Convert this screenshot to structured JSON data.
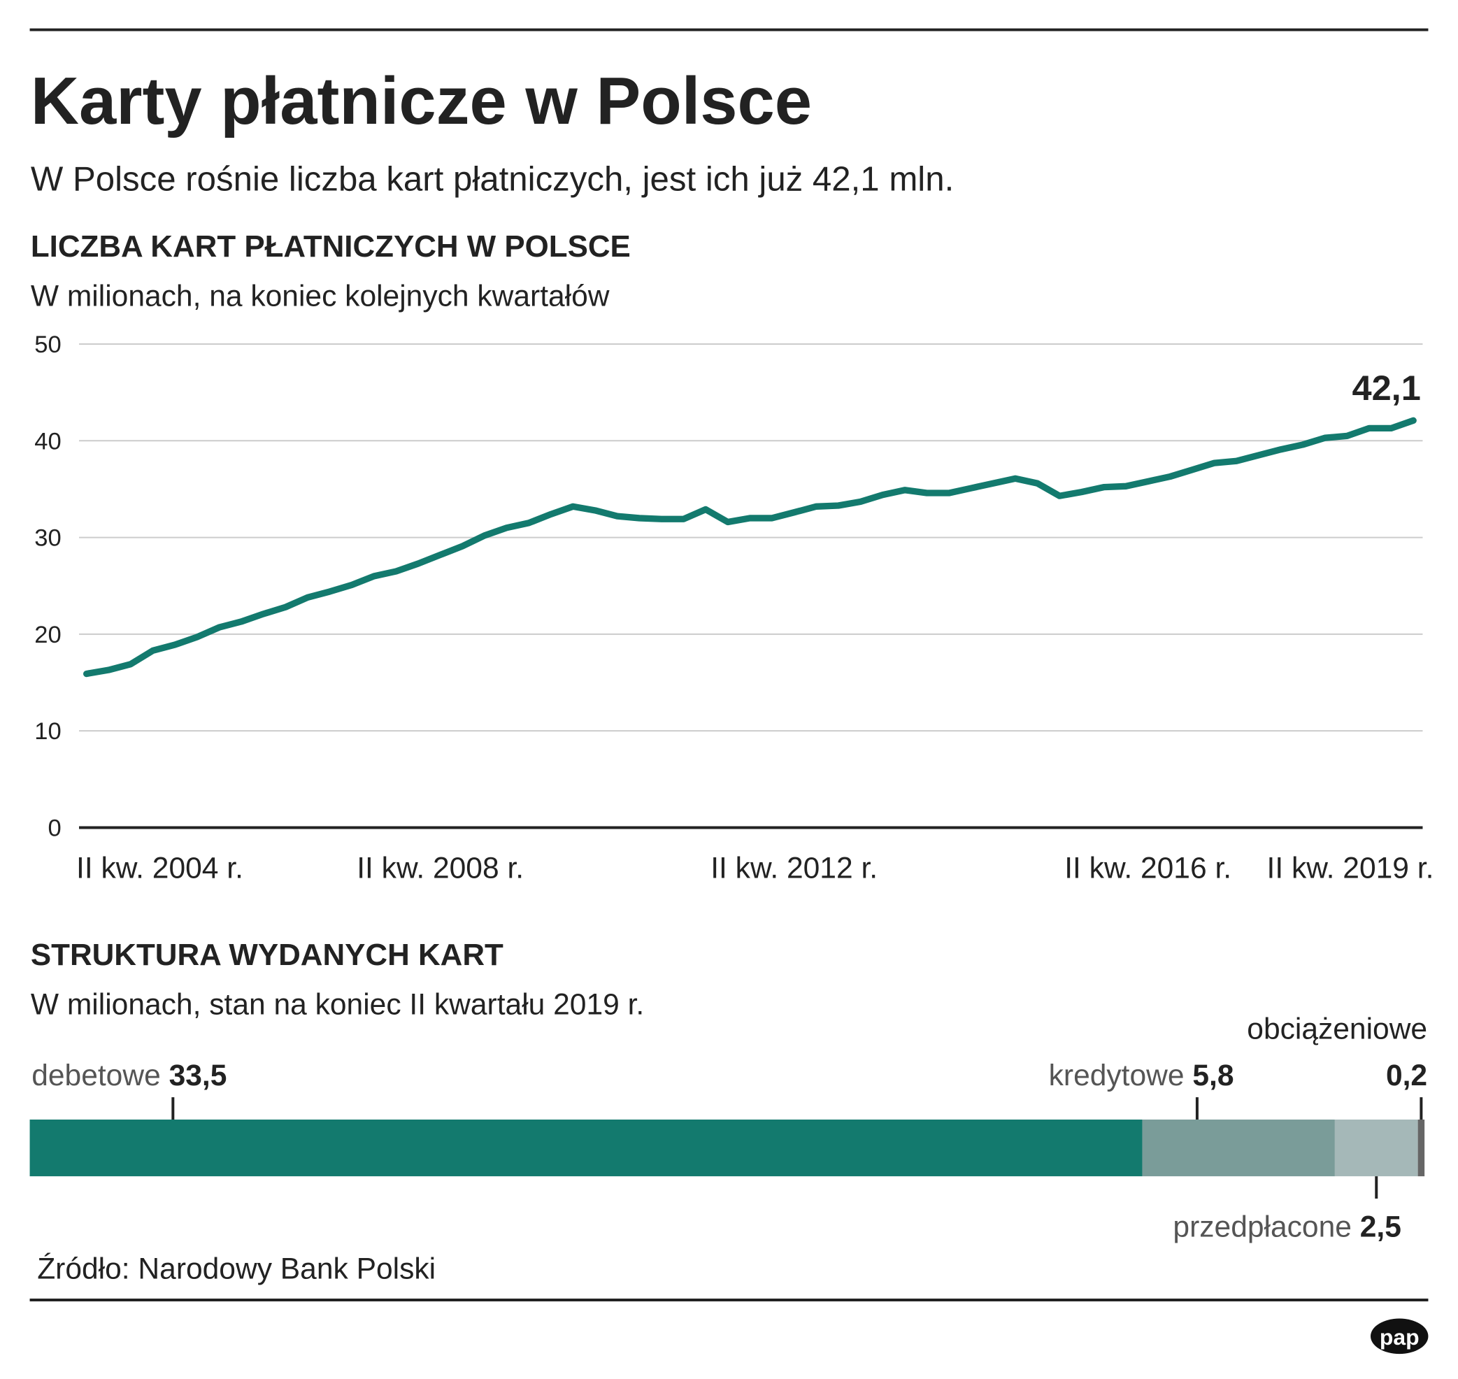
{
  "header": {
    "title": "Karty płatnicze w Polsce",
    "subtitle": "W Polsce rośnie liczba kart płatniczych, jest ich już 42,1 mln."
  },
  "chart_data": [
    {
      "type": "line",
      "title": "LICZBA KART PŁATNICZYCH W POLSCE",
      "subtitle": "W milionach, na koniec kolejnych kwartałów",
      "categories": [
        "II kw. 2004 r.",
        null,
        null,
        null,
        null,
        null,
        null,
        null,
        null,
        null,
        null,
        null,
        null,
        null,
        null,
        null,
        "II kw. 2008 r.",
        null,
        null,
        null,
        null,
        null,
        null,
        null,
        null,
        null,
        null,
        null,
        null,
        null,
        null,
        null,
        "II kw. 2012 r.",
        null,
        null,
        null,
        null,
        null,
        null,
        null,
        null,
        null,
        null,
        null,
        null,
        null,
        null,
        null,
        "II kw. 2016 r.",
        null,
        null,
        null,
        null,
        null,
        null,
        null,
        null,
        null,
        null,
        null,
        "II kw. 2019 r."
      ],
      "values": [
        15.9,
        16.3,
        16.9,
        18.3,
        18.9,
        19.7,
        20.7,
        21.3,
        22.1,
        22.8,
        23.8,
        24.4,
        25.1,
        26.0,
        26.5,
        27.3,
        28.2,
        29.1,
        30.2,
        31.0,
        31.5,
        32.4,
        33.2,
        32.8,
        32.2,
        32.0,
        31.9,
        31.9,
        32.9,
        31.6,
        32.0,
        32.0,
        32.6,
        33.2,
        33.3,
        33.7,
        34.4,
        34.9,
        34.6,
        34.6,
        35.1,
        35.6,
        36.1,
        35.6,
        34.3,
        34.7,
        35.2,
        35.3,
        35.8,
        36.3,
        37.0,
        37.7,
        37.9,
        38.5,
        39.1,
        39.6,
        40.3,
        40.5,
        41.3,
        41.3,
        42.1
      ],
      "value_labels": [
        null,
        null,
        null,
        null,
        null,
        null,
        null,
        null,
        null,
        null,
        null,
        null,
        null,
        null,
        null,
        null,
        null,
        null,
        null,
        null,
        null,
        null,
        null,
        null,
        null,
        null,
        null,
        null,
        null,
        null,
        null,
        null,
        null,
        null,
        null,
        null,
        null,
        null,
        null,
        null,
        null,
        null,
        null,
        null,
        null,
        null,
        null,
        null,
        null,
        null,
        null,
        null,
        null,
        null,
        null,
        null,
        null,
        null,
        null,
        null,
        "42,1"
      ],
      "color": "#137a6e",
      "ylim": [
        0,
        50
      ],
      "yticks": [
        0,
        10,
        20,
        30,
        40,
        50
      ],
      "grid": true
    },
    {
      "type": "stacked-bar",
      "title": "STRUKTURA WYDANYCH KART",
      "subtitle": "W milionach, stan na koniec II kwartału 2019 r.",
      "series": [
        {
          "name": "debetowe",
          "color": "#137a6e",
          "values": [
            33.5
          ],
          "value_labels": [
            "33,5"
          ]
        },
        {
          "name": "kredytowe",
          "color": "#7a9c99",
          "values": [
            5.8
          ],
          "value_labels": [
            "5,8"
          ]
        },
        {
          "name": "przedpłacone",
          "color": "#a5b8b8",
          "values": [
            2.5
          ],
          "value_labels": [
            "2,5"
          ]
        },
        {
          "name": "obciążeniowe",
          "color": "#666666",
          "values": [
            0.2
          ],
          "value_labels": [
            "0,2"
          ]
        }
      ]
    }
  ],
  "source": "Źródło: Narodowy Bank Polski",
  "logo": "pap"
}
